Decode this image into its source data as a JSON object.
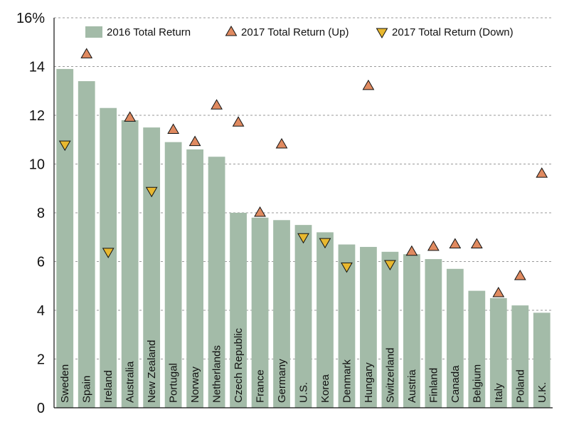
{
  "chart_data": {
    "type": "bar",
    "categories": [
      "Sweden",
      "Spain",
      "Ireland",
      "Australia",
      "New Zealand",
      "Portugal",
      "Norway",
      "Netherlands",
      "Czech Republic",
      "France",
      "Germany",
      "U.S.",
      "Korea",
      "Denmark",
      "Hungary",
      "Switzerland",
      "Austria",
      "Finland",
      "Canada",
      "Belgium",
      "Italy",
      "Poland",
      "U.K."
    ],
    "series": [
      {
        "name": "2016 Total Return",
        "kind": "bar",
        "color": "#a3bba8",
        "values": [
          13.9,
          13.4,
          12.3,
          11.8,
          11.5,
          10.9,
          10.6,
          10.3,
          8.0,
          7.8,
          7.7,
          7.5,
          7.2,
          6.7,
          6.6,
          6.4,
          6.3,
          6.1,
          5.7,
          4.8,
          4.5,
          4.2,
          3.9
        ]
      },
      {
        "name": "2017 Total Return (Up)",
        "kind": "marker-up",
        "color": "#e08a60",
        "values": [
          null,
          14.5,
          null,
          11.9,
          null,
          11.4,
          10.9,
          12.4,
          11.7,
          8.0,
          10.8,
          null,
          null,
          null,
          13.2,
          null,
          6.4,
          6.6,
          6.7,
          6.7,
          4.7,
          5.4,
          9.6
        ]
      },
      {
        "name": "2017 Total Return (Down)",
        "kind": "marker-down",
        "color": "#e8b830",
        "values": [
          10.8,
          null,
          6.4,
          null,
          8.9,
          null,
          null,
          null,
          null,
          null,
          null,
          7.0,
          6.8,
          5.8,
          null,
          5.9,
          null,
          null,
          null,
          null,
          null,
          null,
          null
        ]
      }
    ],
    "ylim": [
      0,
      16
    ],
    "yticks": [
      0,
      2,
      4,
      6,
      8,
      10,
      12,
      14,
      16
    ],
    "ytick_labels": [
      "0",
      "2",
      "4",
      "6",
      "8",
      "10",
      "12",
      "14",
      "16%"
    ],
    "grid": true,
    "legend_position": "top"
  }
}
